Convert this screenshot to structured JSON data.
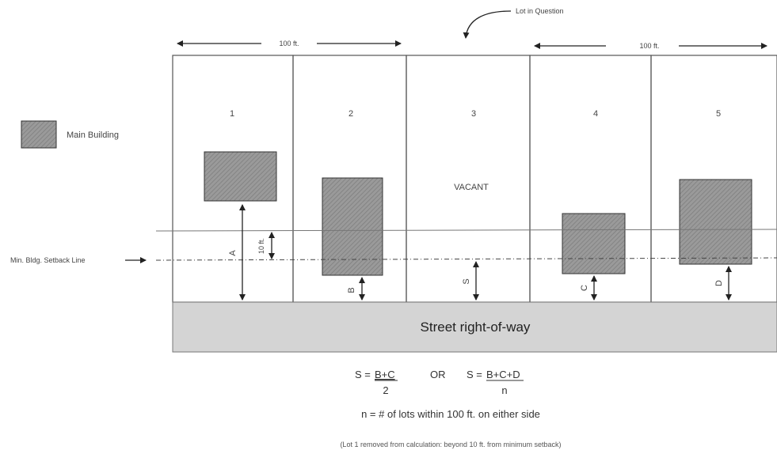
{
  "annotation": {
    "lot_in_question": "Lot in Question"
  },
  "dimensions": {
    "left_span": "100 ft.",
    "right_span": "100 ft.",
    "ten_ft": "10 ft."
  },
  "legend": {
    "label": "Main Building"
  },
  "setback_line_label": "Min. Bldg. Setback Line",
  "lots": [
    {
      "number": "1"
    },
    {
      "number": "2"
    },
    {
      "number": "3",
      "status": "VACANT"
    },
    {
      "number": "4"
    },
    {
      "number": "5"
    }
  ],
  "distance_labels": {
    "a": "A",
    "b": "B",
    "s": "S",
    "c": "C",
    "d": "D"
  },
  "street_label": "Street right-of-way",
  "formula": {
    "s_eq_1": "S = ",
    "num_1": "B+C",
    "den_1": "2",
    "or": "OR",
    "s_eq_2": "S = ",
    "num_2": "B+C+D",
    "den_2": "n"
  },
  "definition": "n = # of lots within 100 ft. on either side",
  "footnote": "(Lot 1 removed from calculation: beyond 10 ft. from minimum setback)",
  "colors": {
    "building_fill": "#9a9a9a",
    "street_fill": "#d4d4d4",
    "line": "#333333"
  }
}
